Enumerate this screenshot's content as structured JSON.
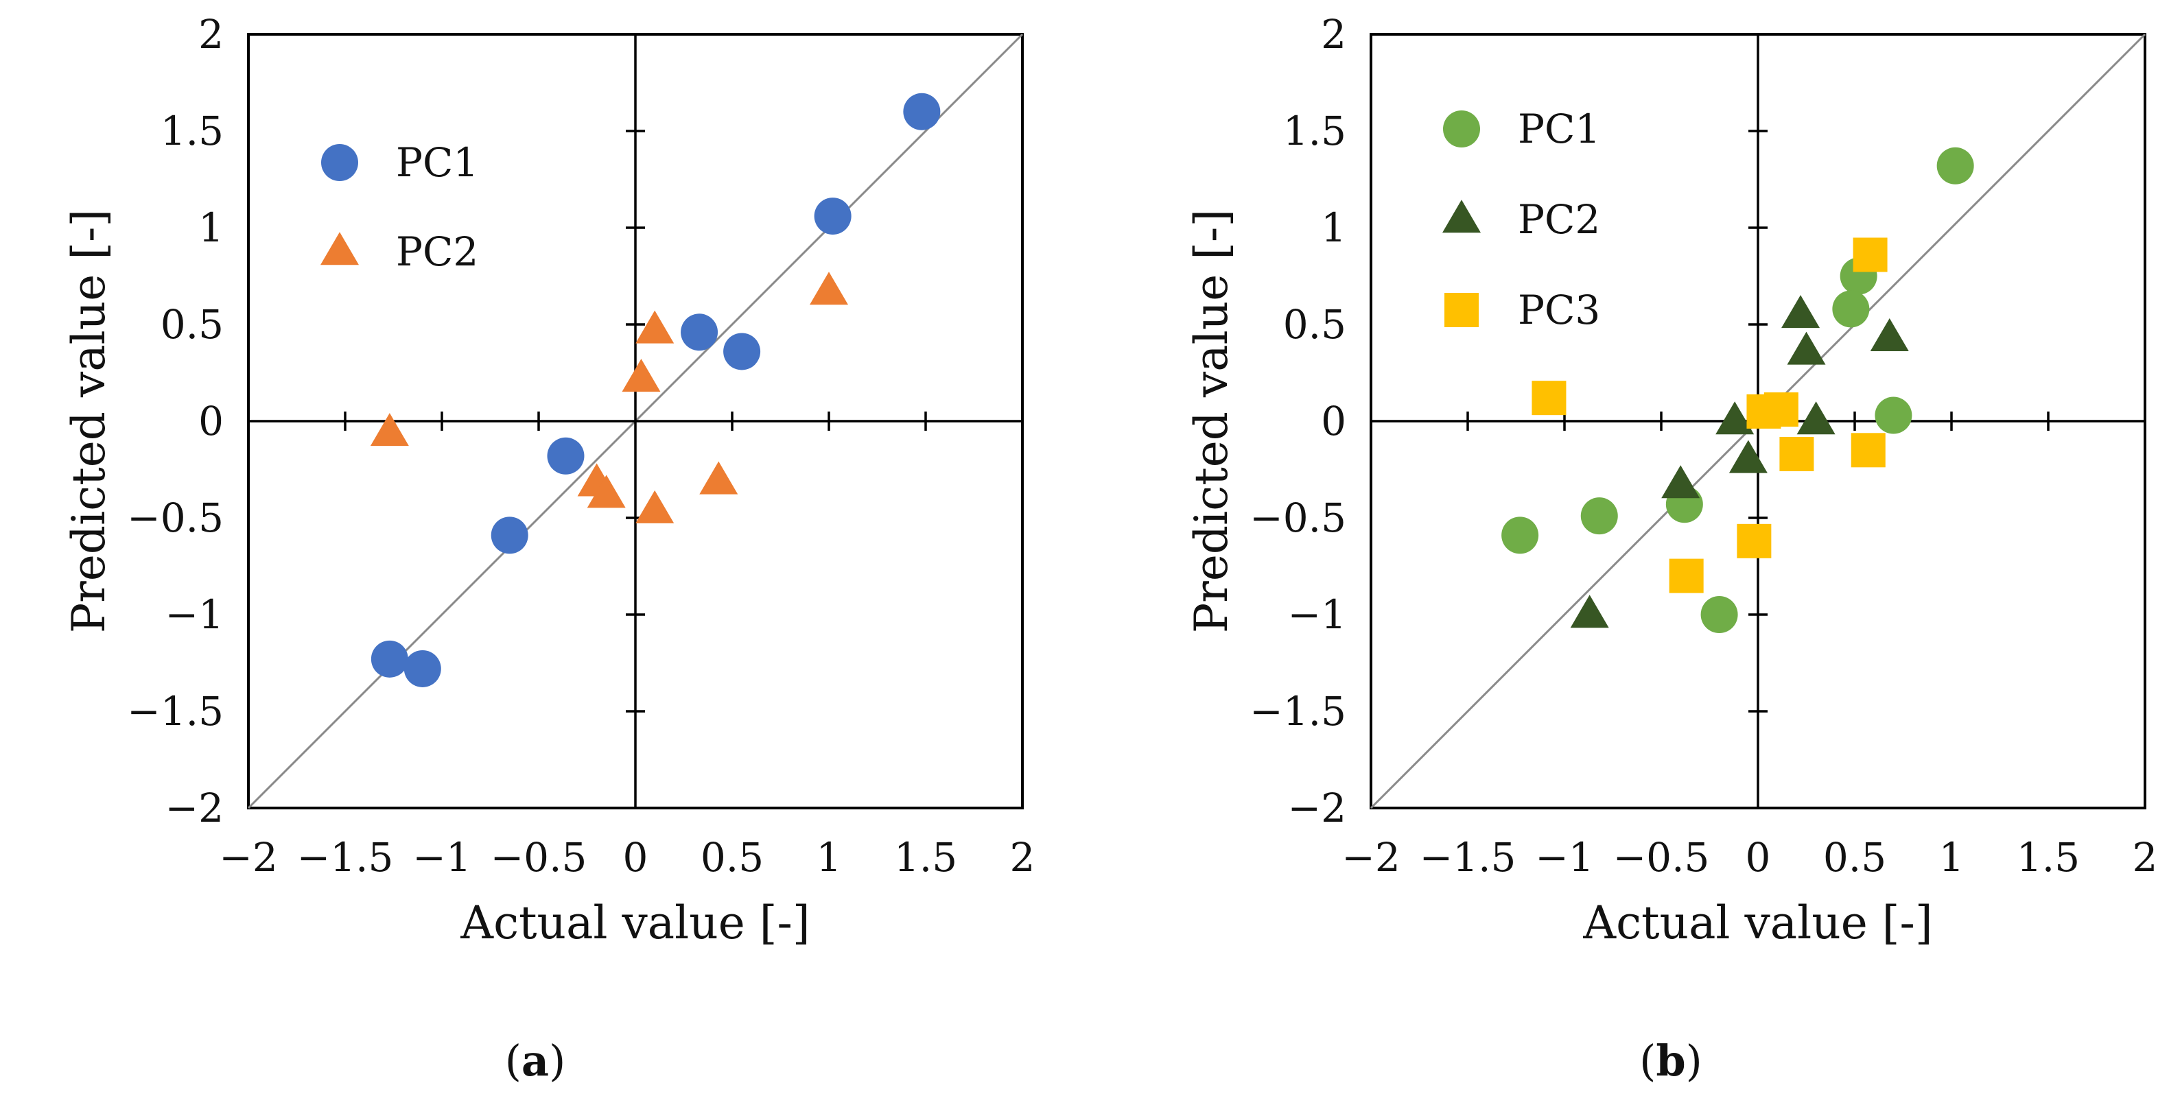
{
  "chart_data": [
    {
      "panel": "(a)",
      "type": "scatter",
      "xlabel": "Actual value [-]",
      "ylabel": "Predicted value [-]",
      "xlim": [
        -2,
        2
      ],
      "ylim": [
        -2,
        2
      ],
      "xticks": [
        -2,
        -1.5,
        -1,
        -0.5,
        0,
        0.5,
        1,
        1.5,
        2
      ],
      "yticks": [
        -2,
        -1.5,
        -1,
        -0.5,
        0,
        0.5,
        1,
        1.5,
        2
      ],
      "diagonal": true,
      "legend_position": "top-left",
      "series": [
        {
          "name": "PC1",
          "marker": "circle",
          "color": "#4472C4",
          "points": [
            [
              1.48,
              1.6
            ],
            [
              1.02,
              1.06
            ],
            [
              0.33,
              0.46
            ],
            [
              0.55,
              0.36
            ],
            [
              -0.36,
              -0.18
            ],
            [
              -0.65,
              -0.59
            ],
            [
              -1.27,
              -1.23
            ],
            [
              -1.1,
              -1.28
            ]
          ]
        },
        {
          "name": "PC2",
          "marker": "triangle",
          "color": "#ED7D31",
          "points": [
            [
              -1.27,
              -0.06
            ],
            [
              0.1,
              0.47
            ],
            [
              0.03,
              0.22
            ],
            [
              1.0,
              0.67
            ],
            [
              -0.2,
              -0.32
            ],
            [
              -0.15,
              -0.38
            ],
            [
              0.1,
              -0.46
            ],
            [
              0.43,
              -0.31
            ]
          ]
        }
      ]
    },
    {
      "panel": "(b)",
      "type": "scatter",
      "xlabel": "Actual value [-]",
      "ylabel": "Predicted value [-]",
      "xlim": [
        -2,
        2
      ],
      "ylim": [
        -2,
        2
      ],
      "xticks": [
        -2,
        -1.5,
        -1,
        -0.5,
        0,
        0.5,
        1,
        1.5,
        2
      ],
      "yticks": [
        -2,
        -1.5,
        -1,
        -0.5,
        0,
        0.5,
        1,
        1.5,
        2
      ],
      "diagonal": true,
      "legend_position": "top-left",
      "series": [
        {
          "name": "PC1",
          "marker": "circle",
          "color": "#70AD47",
          "points": [
            [
              1.02,
              1.32
            ],
            [
              0.52,
              0.75
            ],
            [
              0.48,
              0.58
            ],
            [
              0.7,
              0.03
            ],
            [
              -0.82,
              -0.49
            ],
            [
              -0.38,
              -0.43
            ],
            [
              -1.23,
              -0.59
            ],
            [
              -0.2,
              -1.0
            ]
          ]
        },
        {
          "name": "PC2",
          "marker": "triangle",
          "color": "#375623",
          "points": [
            [
              0.22,
              0.55
            ],
            [
              0.25,
              0.36
            ],
            [
              0.68,
              0.43
            ],
            [
              0.3,
              0.0
            ],
            [
              -0.12,
              0.0
            ],
            [
              -0.05,
              -0.2
            ],
            [
              -0.4,
              -0.33
            ],
            [
              -0.87,
              -1.0
            ]
          ]
        },
        {
          "name": "PC3",
          "marker": "square",
          "color": "#FFC000",
          "points": [
            [
              0.58,
              0.86
            ],
            [
              -1.08,
              0.12
            ],
            [
              0.03,
              0.05
            ],
            [
              0.12,
              0.06
            ],
            [
              0.2,
              -0.17
            ],
            [
              0.57,
              -0.15
            ],
            [
              -0.02,
              -0.62
            ],
            [
              -0.37,
              -0.8
            ]
          ]
        }
      ]
    }
  ]
}
